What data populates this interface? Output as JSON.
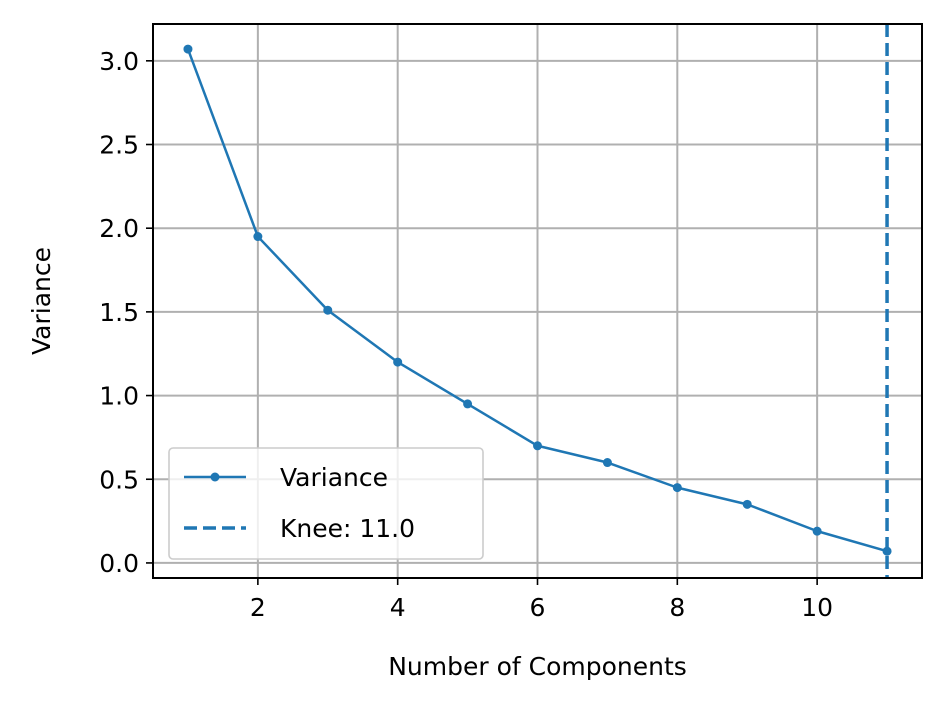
{
  "chart_data": {
    "type": "line",
    "title": "",
    "xlabel": "Number of Components",
    "ylabel": "Variance",
    "xlim": [
      0.5,
      11.5
    ],
    "ylim": [
      -0.09,
      3.22
    ],
    "xticks": [
      2,
      4,
      6,
      8,
      10
    ],
    "xtick_labels": [
      "2",
      "4",
      "6",
      "8",
      "10"
    ],
    "yticks": [
      0.0,
      0.5,
      1.0,
      1.5,
      2.0,
      2.5,
      3.0
    ],
    "ytick_labels": [
      "0.0",
      "0.5",
      "1.0",
      "1.5",
      "2.0",
      "2.5",
      "3.0"
    ],
    "grid": true,
    "legend_position": "lower-left",
    "series": [
      {
        "name": "Variance",
        "color": "#1f77b4",
        "style": "solid-with-markers",
        "x": [
          1,
          2,
          3,
          4,
          5,
          6,
          7,
          8,
          9,
          10,
          11
        ],
        "y": [
          3.07,
          1.95,
          1.51,
          1.2,
          0.95,
          0.7,
          0.6,
          0.45,
          0.35,
          0.19,
          0.07
        ]
      }
    ],
    "vlines": [
      {
        "name": "Knee: 11.0",
        "x": 11.0,
        "color": "#1f77b4",
        "style": "dashed"
      }
    ]
  }
}
